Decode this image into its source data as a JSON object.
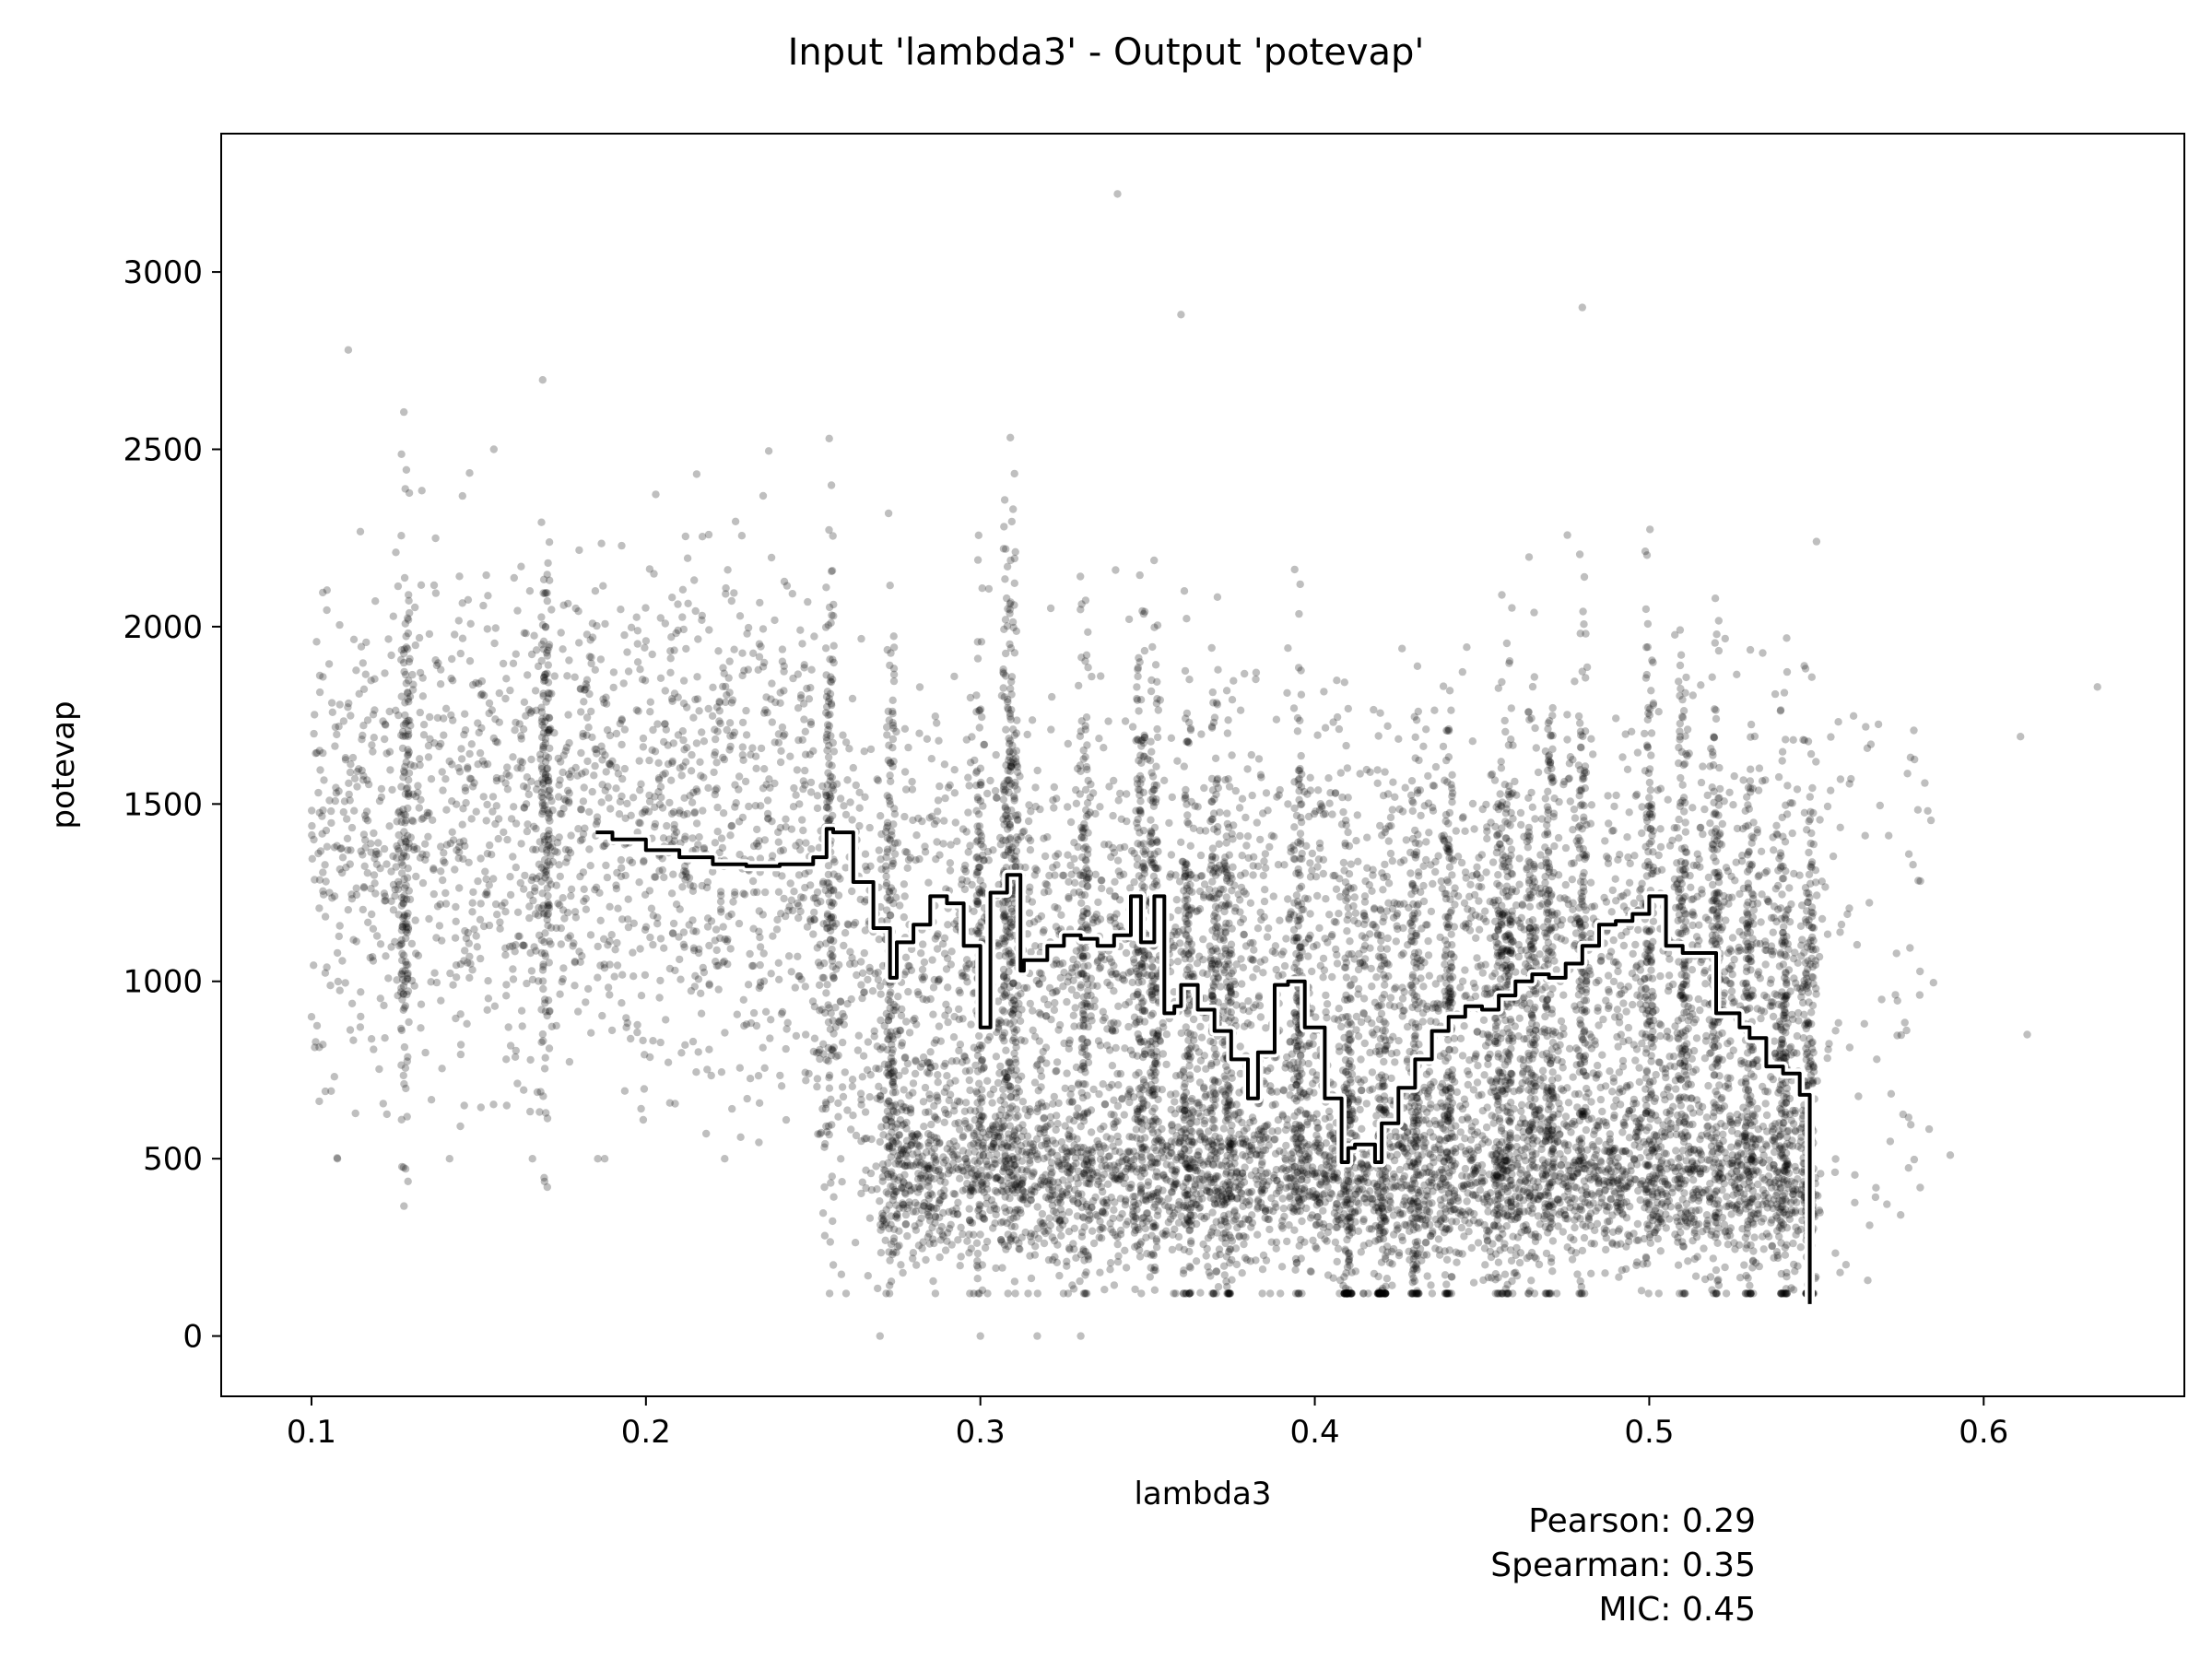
{
  "chart_data": {
    "type": "scatter",
    "title": "Input 'lambda3' - Output 'potevap'",
    "xlabel": "lambda3",
    "ylabel": "potevap",
    "xlim": [
      0.073,
      0.66
    ],
    "ylim": [
      -170,
      3390
    ],
    "xticks": [
      0.1,
      0.2,
      0.3,
      0.4,
      0.5,
      0.6
    ],
    "xtick_labels": [
      "0.1",
      "0.2",
      "0.3",
      "0.4",
      "0.5",
      "0.6"
    ],
    "yticks": [
      0,
      500,
      1000,
      1500,
      2000,
      2500,
      3000
    ],
    "ytick_labels": [
      "0",
      "500",
      "1000",
      "1500",
      "2000",
      "2500",
      "3000"
    ],
    "grid": false,
    "point_color": "#000000",
    "point_alpha": 0.25,
    "scatter_summary": {
      "x_range": [
        0.1,
        0.634
      ],
      "y_range": [
        0,
        3220
      ],
      "dense_columns_x": [
        0.128,
        0.17,
        0.255,
        0.273,
        0.3,
        0.308,
        0.31,
        0.331,
        0.348,
        0.352,
        0.362,
        0.37,
        0.374,
        0.395,
        0.41,
        0.42,
        0.43,
        0.44,
        0.455,
        0.458,
        0.465,
        0.47,
        0.48,
        0.5,
        0.51,
        0.52,
        0.53,
        0.54,
        0.548
      ],
      "notable_points": [
        {
          "x": 0.1,
          "y": 900
        },
        {
          "x": 0.111,
          "y": 2780
        },
        {
          "x": 0.341,
          "y": 3220
        },
        {
          "x": 0.36,
          "y": 2880
        },
        {
          "x": 0.48,
          "y": 2900
        },
        {
          "x": 0.55,
          "y": 2240
        },
        {
          "x": 0.59,
          "y": 510
        },
        {
          "x": 0.611,
          "y": 1690
        },
        {
          "x": 0.613,
          "y": 850
        },
        {
          "x": 0.634,
          "y": 1830
        },
        {
          "x": 0.27,
          "y": 0
        },
        {
          "x": 0.3,
          "y": 0
        },
        {
          "x": 0.317,
          "y": 0
        },
        {
          "x": 0.33,
          "y": 0
        }
      ]
    },
    "series": [
      {
        "type": "step-line",
        "color": "#000000",
        "outline_color": "#ffffff",
        "x": [
          0.185,
          0.19,
          0.2,
          0.21,
          0.22,
          0.23,
          0.24,
          0.25,
          0.254,
          0.256,
          0.262,
          0.268,
          0.273,
          0.275,
          0.28,
          0.285,
          0.29,
          0.295,
          0.3,
          0.303,
          0.308,
          0.312,
          0.313,
          0.32,
          0.325,
          0.33,
          0.335,
          0.34,
          0.345,
          0.348,
          0.352,
          0.355,
          0.358,
          0.36,
          0.365,
          0.37,
          0.375,
          0.38,
          0.383,
          0.388,
          0.392,
          0.397,
          0.403,
          0.408,
          0.41,
          0.412,
          0.418,
          0.42,
          0.425,
          0.43,
          0.435,
          0.44,
          0.445,
          0.45,
          0.455,
          0.46,
          0.465,
          0.47,
          0.475,
          0.48,
          0.485,
          0.49,
          0.495,
          0.5,
          0.505,
          0.51,
          0.52,
          0.527,
          0.53,
          0.535,
          0.54,
          0.545,
          0.548
        ],
        "y": [
          1420,
          1400,
          1370,
          1350,
          1330,
          1325,
          1330,
          1350,
          1430,
          1420,
          1280,
          1150,
          1010,
          1110,
          1160,
          1240,
          1220,
          1100,
          870,
          1250,
          1300,
          1030,
          1060,
          1100,
          1130,
          1120,
          1100,
          1130,
          1240,
          1110,
          1240,
          910,
          930,
          990,
          920,
          860,
          780,
          670,
          800,
          990,
          1000,
          870,
          670,
          490,
          530,
          540,
          490,
          600,
          700,
          780,
          860,
          900,
          930,
          920,
          960,
          1000,
          1020,
          1010,
          1050,
          1100,
          1160,
          1170,
          1190,
          1240,
          1100,
          1080,
          910,
          870,
          840,
          760,
          740,
          680,
          90
        ]
      }
    ],
    "stats": {
      "pearson": "Pearson: 0.29",
      "spearman": "Spearman: 0.35",
      "mic": "MIC: 0.45"
    }
  }
}
